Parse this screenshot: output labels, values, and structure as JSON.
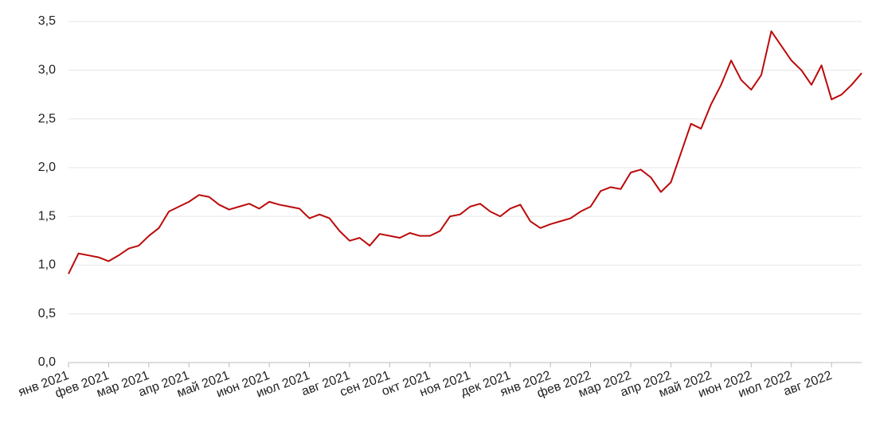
{
  "chart_data": {
    "type": "line",
    "categories": [
      "янв 2021",
      null,
      null,
      null,
      "фев 2021",
      null,
      null,
      null,
      "мар 2021",
      null,
      null,
      null,
      "апр 2021",
      null,
      null,
      null,
      "май 2021",
      null,
      null,
      null,
      "июн 2021",
      null,
      null,
      null,
      "июл 2021",
      null,
      null,
      null,
      "авг 2021",
      null,
      null,
      null,
      "сен 2021",
      null,
      null,
      null,
      "окт 2021",
      null,
      null,
      null,
      "ноя 2021",
      null,
      null,
      null,
      "дек 2021",
      null,
      null,
      null,
      "янв 2022",
      null,
      null,
      null,
      "фев 2022",
      null,
      null,
      null,
      "мар 2022",
      null,
      null,
      null,
      "апр 2022",
      null,
      null,
      null,
      "май 2022",
      null,
      null,
      null,
      "июн 2022",
      null,
      null,
      null,
      "июл 2022",
      null,
      null,
      null,
      "авг 2022",
      null,
      null,
      null
    ],
    "series": [
      {
        "color": "#bb0a0a",
        "values": [
          0.91,
          1.12,
          1.1,
          1.08,
          1.04,
          1.1,
          1.17,
          1.2,
          1.3,
          1.38,
          1.55,
          1.6,
          1.65,
          1.72,
          1.7,
          1.62,
          1.57,
          1.6,
          1.63,
          1.58,
          1.65,
          1.62,
          1.6,
          1.58,
          1.48,
          1.52,
          1.48,
          1.35,
          1.25,
          1.28,
          1.2,
          1.32,
          1.3,
          1.28,
          1.33,
          1.3,
          1.3,
          1.35,
          1.5,
          1.52,
          1.6,
          1.63,
          1.55,
          1.5,
          1.58,
          1.62,
          1.45,
          1.38,
          1.42,
          1.45,
          1.48,
          1.55,
          1.6,
          1.76,
          1.8,
          1.78,
          1.95,
          1.98,
          1.9,
          1.75,
          1.85,
          2.15,
          2.45,
          2.4,
          2.65,
          2.85,
          3.1,
          2.9,
          2.8,
          2.95,
          3.4,
          3.25,
          3.1,
          3.0,
          2.85,
          3.05,
          2.7,
          2.75,
          2.85,
          2.97
        ]
      }
    ],
    "ylim": [
      0,
      3.5
    ],
    "yticks": [
      {
        "value": 0,
        "label": "0,0"
      },
      {
        "value": 0.5,
        "label": "0,5"
      },
      {
        "value": 1,
        "label": "1,0"
      },
      {
        "value": 1.5,
        "label": "1,5"
      },
      {
        "value": 2,
        "label": "2,0"
      },
      {
        "value": 2.5,
        "label": "2,5"
      },
      {
        "value": 3,
        "label": "3,0"
      },
      {
        "value": 3.5,
        "label": "3,5"
      }
    ],
    "grid": true
  }
}
